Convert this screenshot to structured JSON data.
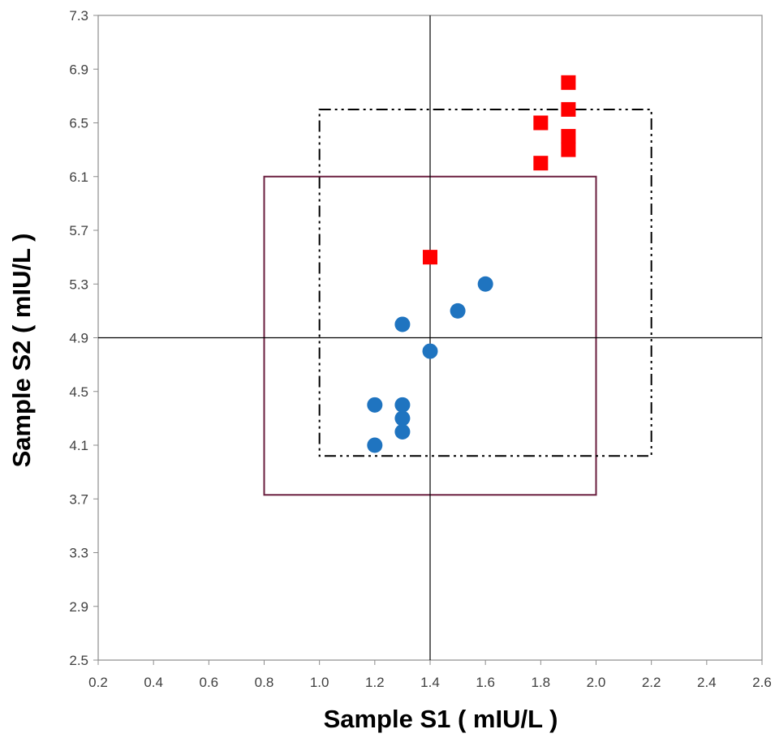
{
  "chart_data": {
    "type": "scatter",
    "xlabel": "Sample S1 ( mIU/L )",
    "ylabel": "Sample S2 ( mIU/L )",
    "xlim": [
      0.2,
      2.6
    ],
    "ylim": [
      2.5,
      7.3
    ],
    "x_ticks": [
      "0.2",
      "0.4",
      "0.6",
      "0.8",
      "1.0",
      "1.2",
      "1.4",
      "1.6",
      "1.8",
      "2.0",
      "2.2",
      "2.4",
      "2.6"
    ],
    "y_ticks": [
      "7.3",
      "6.9",
      "6.5",
      "6.1",
      "5.7",
      "5.3",
      "4.9",
      "4.5",
      "4.1",
      "3.7",
      "3.3",
      "2.9",
      "2.5"
    ],
    "grid": false,
    "legend": "none",
    "reference_lines": {
      "x": 1.4,
      "y": 4.9,
      "color": "#000000"
    },
    "series": [
      {
        "marker": "circle",
        "color": "#1f74c0",
        "points": [
          [
            1.2,
            4.1
          ],
          [
            1.2,
            4.4
          ],
          [
            1.3,
            4.2
          ],
          [
            1.3,
            4.3
          ],
          [
            1.3,
            4.4
          ],
          [
            1.3,
            5.0
          ],
          [
            1.4,
            4.8
          ],
          [
            1.5,
            5.1
          ],
          [
            1.6,
            5.3
          ]
        ]
      },
      {
        "marker": "square",
        "color": "#ff0000",
        "points": [
          [
            1.4,
            5.5
          ],
          [
            1.8,
            6.2
          ],
          [
            1.8,
            6.5
          ],
          [
            1.9,
            6.3
          ],
          [
            1.9,
            6.4
          ],
          [
            1.9,
            6.6
          ],
          [
            1.9,
            6.8
          ]
        ]
      }
    ],
    "boxes": [
      {
        "style": "solid",
        "color": "#6a1f3f",
        "x": [
          0.8,
          2.0
        ],
        "y": [
          3.73,
          6.1
        ]
      },
      {
        "style": "dash-dot",
        "color": "#000000",
        "x": [
          1.0,
          2.2
        ],
        "y": [
          4.02,
          6.6
        ]
      }
    ]
  }
}
